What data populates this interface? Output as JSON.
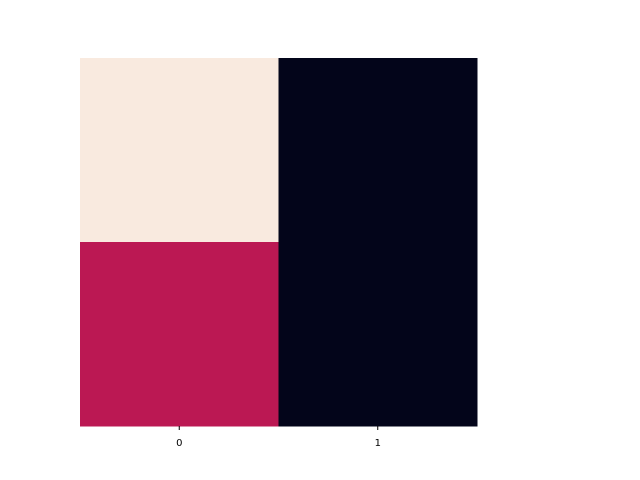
{
  "chart_data": {
    "type": "heatmap",
    "x_tick_labels": [
      "0",
      "1"
    ],
    "y_tick_labels": [],
    "cells": [
      [
        {
          "row": 0,
          "col": 0,
          "color": "#f9eadf"
        },
        {
          "row": 0,
          "col": 1,
          "color": "#03051a"
        }
      ],
      [
        {
          "row": 1,
          "col": 0,
          "color": "#bb1853"
        },
        {
          "row": 1,
          "col": 1,
          "color": "#03051a"
        }
      ]
    ],
    "colorbar": false,
    "title": "",
    "xlabel": "",
    "ylabel": ""
  }
}
